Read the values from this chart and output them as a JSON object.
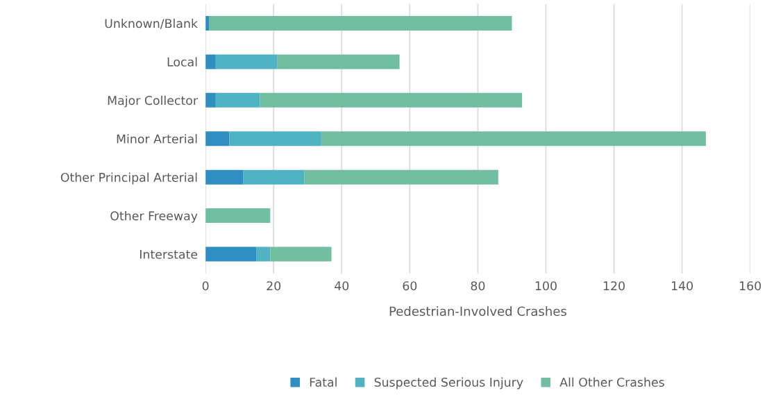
{
  "chart_data": {
    "type": "bar",
    "orientation": "horizontal",
    "stacked": true,
    "xlabel": "Pedestrian-Involved Crashes",
    "categories": [
      "Unknown/Blank",
      "Local",
      "Major Collector",
      "Minor Arterial",
      "Other Principal Arterial",
      "Other Freeway",
      "Interstate"
    ],
    "series": [
      {
        "name": "Fatal",
        "color": "#2e8fc0",
        "values": [
          1,
          3,
          3,
          7,
          11,
          0,
          15
        ]
      },
      {
        "name": "Suspected Serious Injury",
        "color": "#4fb3c4",
        "values": [
          0,
          18,
          13,
          27,
          18,
          0,
          4
        ]
      },
      {
        "name": "All Other Crashes",
        "color": "#72bea0",
        "values": [
          89,
          36,
          77,
          113,
          57,
          19,
          18
        ]
      }
    ],
    "xlim": [
      0,
      160
    ],
    "xticks": [
      0,
      20,
      40,
      60,
      80,
      100,
      120,
      140,
      160
    ],
    "grid": "x",
    "legend": "bottom"
  }
}
